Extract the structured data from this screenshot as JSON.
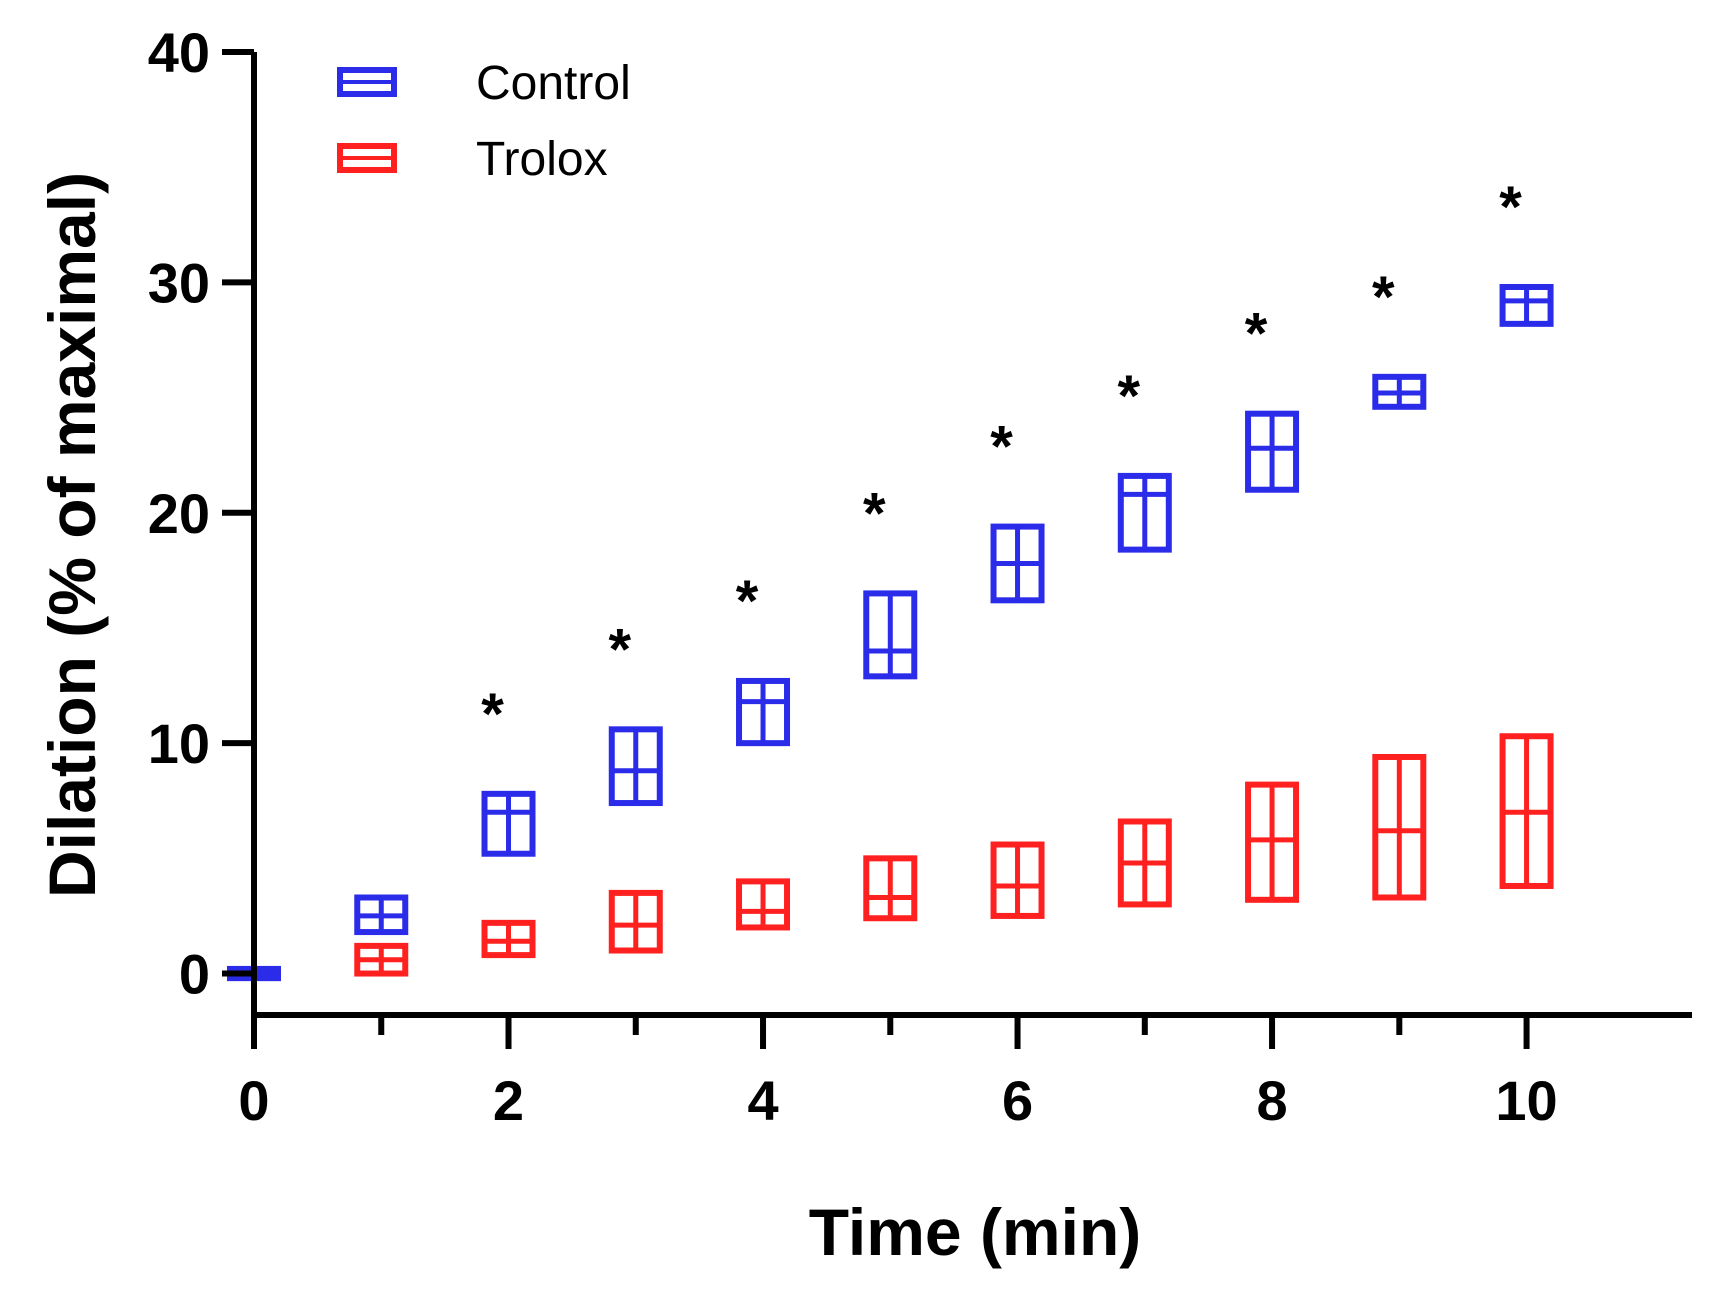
{
  "chart_data": {
    "type": "box",
    "xlabel": "Time (min)",
    "ylabel": "Dilation (% of maximal)",
    "xlim": [
      0,
      11.3
    ],
    "ylim": [
      -1.8,
      40
    ],
    "xticks": [
      "0",
      "2",
      "4",
      "6",
      "8",
      "10"
    ],
    "yticks": [
      "0",
      "10",
      "20",
      "30",
      "40"
    ],
    "legend_position": "top-left",
    "significance_marker": "*",
    "significant_x": [
      2,
      3,
      4,
      5,
      6,
      7,
      8,
      9,
      10
    ],
    "series": [
      {
        "name": "Control",
        "color": "#2b2bea",
        "points": [
          {
            "x": 0,
            "min": -0.2,
            "median": 0,
            "max": 0.2
          },
          {
            "x": 1,
            "min": 1.8,
            "median": 2.5,
            "max": 3.3
          },
          {
            "x": 2,
            "min": 5.2,
            "median": 7.0,
            "max": 7.8
          },
          {
            "x": 3,
            "min": 7.4,
            "median": 8.8,
            "max": 10.6
          },
          {
            "x": 4,
            "min": 10.0,
            "median": 11.8,
            "max": 12.7
          },
          {
            "x": 5,
            "min": 12.9,
            "median": 14.0,
            "max": 16.5
          },
          {
            "x": 6,
            "min": 16.2,
            "median": 17.8,
            "max": 19.4
          },
          {
            "x": 7,
            "min": 18.4,
            "median": 20.8,
            "max": 21.6
          },
          {
            "x": 8,
            "min": 21.0,
            "median": 22.8,
            "max": 24.3
          },
          {
            "x": 9,
            "min": 24.6,
            "median": 25.2,
            "max": 25.9
          },
          {
            "x": 10,
            "min": 28.2,
            "median": 29.2,
            "max": 29.8
          }
        ]
      },
      {
        "name": "Trolox",
        "color": "#ff2020",
        "points": [
          {
            "x": 1,
            "min": 0.0,
            "median": 0.6,
            "max": 1.2
          },
          {
            "x": 2,
            "min": 0.8,
            "median": 1.4,
            "max": 2.2
          },
          {
            "x": 3,
            "min": 1.0,
            "median": 2.1,
            "max": 3.5
          },
          {
            "x": 4,
            "min": 2.0,
            "median": 2.7,
            "max": 4.0
          },
          {
            "x": 5,
            "min": 2.4,
            "median": 3.3,
            "max": 5.0
          },
          {
            "x": 6,
            "min": 2.5,
            "median": 3.8,
            "max": 5.6
          },
          {
            "x": 7,
            "min": 3.0,
            "median": 4.8,
            "max": 6.6
          },
          {
            "x": 8,
            "min": 3.2,
            "median": 5.8,
            "max": 8.2
          },
          {
            "x": 9,
            "min": 3.3,
            "median": 6.2,
            "max": 9.4
          },
          {
            "x": 10,
            "min": 3.8,
            "median": 7.0,
            "max": 10.3
          }
        ]
      }
    ]
  }
}
